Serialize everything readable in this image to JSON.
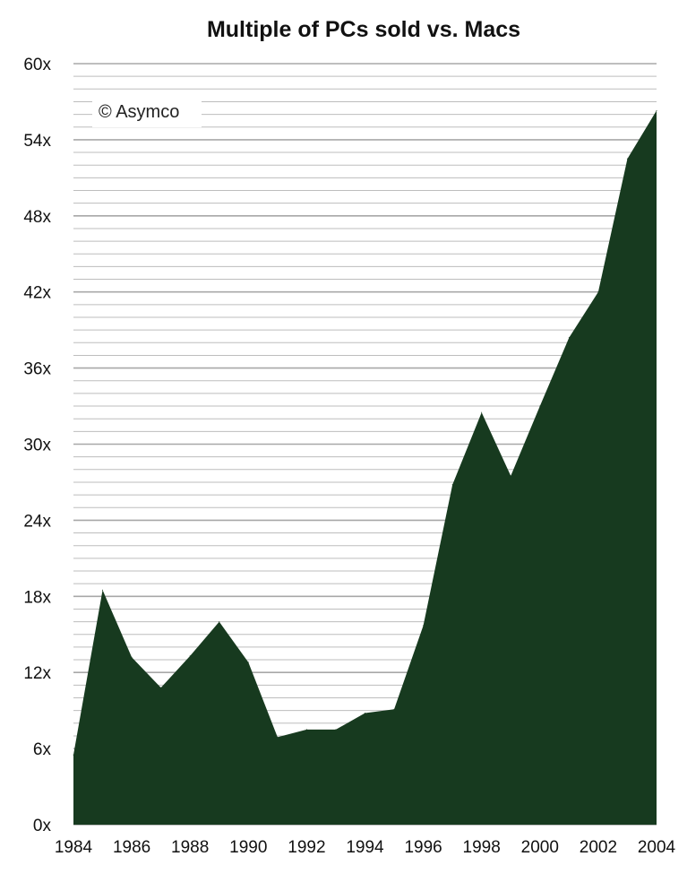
{
  "chart_data": {
    "type": "area",
    "title": "Multiple of PCs sold vs. Macs",
    "xlabel": "",
    "ylabel": "",
    "x": [
      1984,
      1985,
      1986,
      1987,
      1988,
      1989,
      1990,
      1991,
      1992,
      1993,
      1994,
      1995,
      1996,
      1997,
      1998,
      1999,
      2000,
      2001,
      2002,
      2003,
      2004
    ],
    "values": [
      5.5,
      18.5,
      13.2,
      10.8,
      13.3,
      16.0,
      12.8,
      6.9,
      7.5,
      7.5,
      8.8,
      9.1,
      15.7,
      26.8,
      32.5,
      27.5,
      33.0,
      38.4,
      42.0,
      52.5,
      56.3
    ],
    "x_tick_labels": [
      "1984",
      "1986",
      "1988",
      "1990",
      "1992",
      "1994",
      "1996",
      "1998",
      "2000",
      "2002",
      "2004"
    ],
    "y_tick_labels": [
      "0x",
      "6x",
      "12x",
      "18x",
      "24x",
      "30x",
      "36x",
      "42x",
      "48x",
      "54x",
      "60x"
    ],
    "ylim": [
      0,
      60
    ],
    "xlim": [
      1984,
      2004
    ],
    "grid": true,
    "annotation": "© Asymco",
    "colors": {
      "fill": "#173a1f",
      "gridline": "#bdbdbd",
      "gridline_major": "#a8a8a8"
    }
  }
}
